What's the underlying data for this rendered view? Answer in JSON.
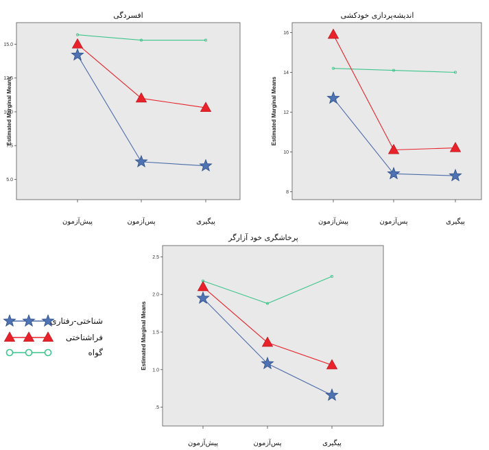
{
  "colors": {
    "series1": "#4a6aa8",
    "series2": "#e8222a",
    "series3": "#3cc58b",
    "star_fill": "#4f72b2",
    "panel_bg": "#e9e9e9"
  },
  "legend": {
    "items": [
      "شناختی-رفتاری",
      "فراشناختی",
      "گواه"
    ],
    "markers": [
      "star",
      "triangle",
      "circle"
    ]
  },
  "chart_data": [
    {
      "type": "line",
      "title": "افسردگی",
      "ylabel": "Estimated Marginal Means",
      "categories": [
        "پیش‌آزمون",
        "پس‌آزمون",
        "پیگیری"
      ],
      "ylim": [
        3.5,
        16.6
      ],
      "yticks": [
        5.0,
        7.5,
        10.0,
        12.5,
        15.0
      ],
      "ytick_labels": [
        "5.0",
        "7.5",
        "10.0",
        "12.5",
        "15.0"
      ],
      "series": [
        {
          "name": "شناختی-رفتاری",
          "marker": "star",
          "values": [
            14.2,
            6.3,
            6.0
          ]
        },
        {
          "name": "فراشناختی",
          "marker": "triangle",
          "values": [
            15.0,
            11.0,
            10.3
          ]
        },
        {
          "name": "گواه",
          "marker": "circle",
          "values": [
            15.7,
            15.3,
            15.3
          ]
        }
      ]
    },
    {
      "type": "line",
      "title": "اندیشه‌پردازی خودکشی",
      "ylabel": "Estimated Marginal Means",
      "categories": [
        "پیش‌آزمون",
        "پس‌آزمون",
        "پیگیری"
      ],
      "ylim": [
        7.6,
        16.5
      ],
      "yticks": [
        8,
        10,
        12,
        14,
        16
      ],
      "ytick_labels": [
        "8",
        "10",
        "12",
        "14",
        "16"
      ],
      "series": [
        {
          "name": "شناختی-رفتاری",
          "marker": "star",
          "values": [
            12.7,
            8.9,
            8.8
          ]
        },
        {
          "name": "فراشناختی",
          "marker": "triangle",
          "values": [
            15.9,
            10.1,
            10.2
          ]
        },
        {
          "name": "گواه",
          "marker": "circle",
          "values": [
            14.2,
            14.1,
            14.0
          ]
        }
      ]
    },
    {
      "type": "line",
      "title": "پرخاشگری خود آزارگر",
      "ylabel": "Estimated Marginal Means",
      "categories": [
        "پیش‌آزمون",
        "پس‌آزمون",
        "پیگیری"
      ],
      "ylim": [
        0.25,
        2.65
      ],
      "yticks": [
        0.5,
        1.0,
        1.5,
        2.0,
        2.5
      ],
      "ytick_labels": [
        ".5",
        "1.0",
        "1.5",
        "2.0",
        "2.5"
      ],
      "series": [
        {
          "name": "شناختی-رفتاری",
          "marker": "star",
          "values": [
            1.95,
            1.08,
            0.66
          ]
        },
        {
          "name": "فراشناختی",
          "marker": "triangle",
          "values": [
            2.1,
            1.36,
            1.06
          ]
        },
        {
          "name": "گواه",
          "marker": "circle",
          "values": [
            2.18,
            1.88,
            2.24
          ]
        }
      ]
    }
  ]
}
